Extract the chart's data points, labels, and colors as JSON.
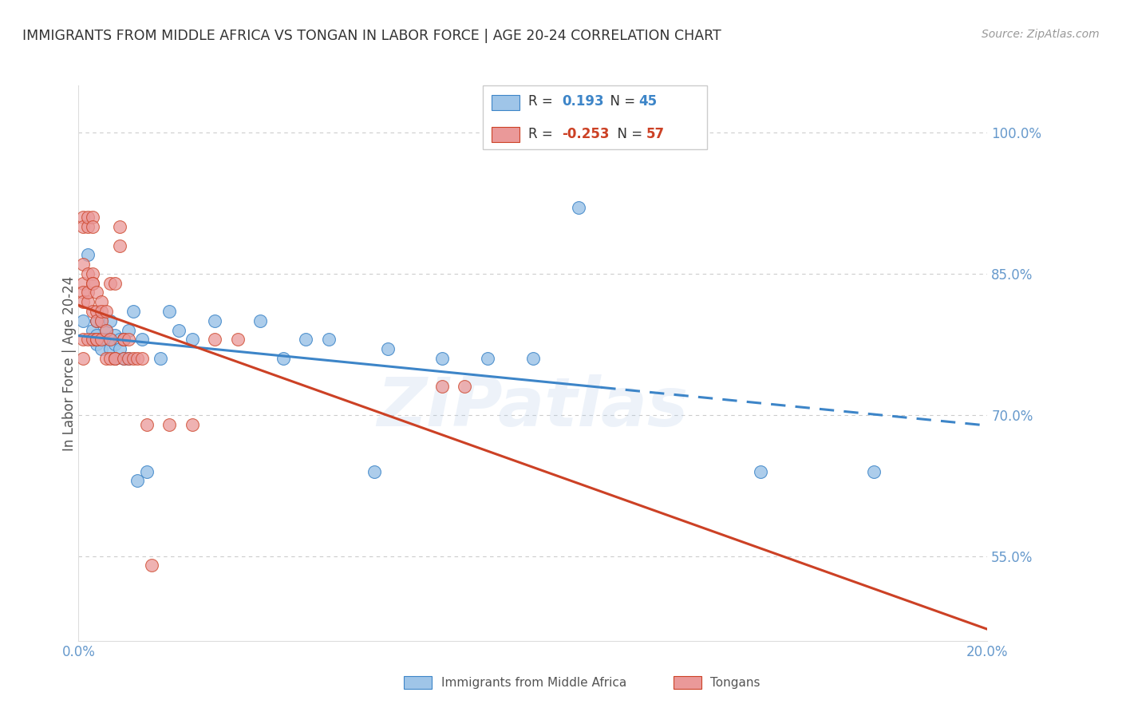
{
  "title": "IMMIGRANTS FROM MIDDLE AFRICA VS TONGAN IN LABOR FORCE | AGE 20-24 CORRELATION CHART",
  "source": "Source: ZipAtlas.com",
  "ylabel": "In Labor Force | Age 20-24",
  "watermark": "ZIPatlas",
  "x_min": 0.0,
  "x_max": 0.2,
  "y_min": 0.46,
  "y_max": 1.05,
  "yticks": [
    0.55,
    0.7,
    0.85,
    1.0
  ],
  "ytick_labels": [
    "55.0%",
    "70.0%",
    "85.0%",
    "100.0%"
  ],
  "xticks": [
    0.0,
    0.05,
    0.1,
    0.15,
    0.2
  ],
  "xtick_labels": [
    "0.0%",
    "",
    "",
    "",
    "20.0%"
  ],
  "legend_R_blue": "0.193",
  "legend_N_blue": "45",
  "legend_R_pink": "-0.253",
  "legend_N_pink": "57",
  "blue_fill": "#9fc5e8",
  "pink_fill": "#ea9999",
  "blue_edge": "#3d85c8",
  "pink_edge": "#cc4125",
  "blue_line": "#3d85c8",
  "pink_line": "#cc4125",
  "background_color": "#ffffff",
  "grid_color": "#cccccc",
  "title_color": "#333333",
  "tick_color": "#6699cc",
  "marker_size": 130,
  "blue_scatter": [
    [
      0.001,
      0.8
    ],
    [
      0.002,
      0.87
    ],
    [
      0.003,
      0.79
    ],
    [
      0.003,
      0.78
    ],
    [
      0.004,
      0.8
    ],
    [
      0.004,
      0.785
    ],
    [
      0.004,
      0.775
    ],
    [
      0.005,
      0.8
    ],
    [
      0.005,
      0.78
    ],
    [
      0.005,
      0.77
    ],
    [
      0.006,
      0.79
    ],
    [
      0.006,
      0.78
    ],
    [
      0.007,
      0.8
    ],
    [
      0.007,
      0.78
    ],
    [
      0.007,
      0.77
    ],
    [
      0.008,
      0.785
    ],
    [
      0.008,
      0.775
    ],
    [
      0.008,
      0.76
    ],
    [
      0.009,
      0.78
    ],
    [
      0.009,
      0.77
    ],
    [
      0.01,
      0.78
    ],
    [
      0.01,
      0.76
    ],
    [
      0.011,
      0.79
    ],
    [
      0.011,
      0.76
    ],
    [
      0.012,
      0.81
    ],
    [
      0.013,
      0.63
    ],
    [
      0.014,
      0.78
    ],
    [
      0.015,
      0.64
    ],
    [
      0.018,
      0.76
    ],
    [
      0.02,
      0.81
    ],
    [
      0.022,
      0.79
    ],
    [
      0.025,
      0.78
    ],
    [
      0.03,
      0.8
    ],
    [
      0.04,
      0.8
    ],
    [
      0.045,
      0.76
    ],
    [
      0.05,
      0.78
    ],
    [
      0.055,
      0.78
    ],
    [
      0.065,
      0.64
    ],
    [
      0.068,
      0.77
    ],
    [
      0.08,
      0.76
    ],
    [
      0.09,
      0.76
    ],
    [
      0.1,
      0.76
    ],
    [
      0.11,
      0.92
    ],
    [
      0.15,
      0.64
    ],
    [
      0.175,
      0.64
    ]
  ],
  "pink_scatter": [
    [
      0.001,
      0.86
    ],
    [
      0.001,
      0.84
    ],
    [
      0.001,
      0.83
    ],
    [
      0.001,
      0.82
    ],
    [
      0.001,
      0.91
    ],
    [
      0.001,
      0.9
    ],
    [
      0.001,
      0.78
    ],
    [
      0.001,
      0.76
    ],
    [
      0.002,
      0.78
    ],
    [
      0.002,
      0.82
    ],
    [
      0.002,
      0.83
    ],
    [
      0.002,
      0.85
    ],
    [
      0.002,
      0.9
    ],
    [
      0.002,
      0.91
    ],
    [
      0.003,
      0.91
    ],
    [
      0.003,
      0.9
    ],
    [
      0.003,
      0.85
    ],
    [
      0.003,
      0.84
    ],
    [
      0.003,
      0.84
    ],
    [
      0.003,
      0.81
    ],
    [
      0.003,
      0.78
    ],
    [
      0.004,
      0.83
    ],
    [
      0.004,
      0.81
    ],
    [
      0.004,
      0.8
    ],
    [
      0.004,
      0.78
    ],
    [
      0.004,
      0.78
    ],
    [
      0.005,
      0.82
    ],
    [
      0.005,
      0.8
    ],
    [
      0.005,
      0.78
    ],
    [
      0.005,
      0.81
    ],
    [
      0.006,
      0.81
    ],
    [
      0.006,
      0.79
    ],
    [
      0.006,
      0.76
    ],
    [
      0.007,
      0.84
    ],
    [
      0.007,
      0.78
    ],
    [
      0.007,
      0.76
    ],
    [
      0.008,
      0.84
    ],
    [
      0.008,
      0.76
    ],
    [
      0.008,
      0.76
    ],
    [
      0.009,
      0.9
    ],
    [
      0.009,
      0.88
    ],
    [
      0.01,
      0.78
    ],
    [
      0.01,
      0.76
    ],
    [
      0.01,
      0.78
    ],
    [
      0.011,
      0.78
    ],
    [
      0.011,
      0.76
    ],
    [
      0.012,
      0.76
    ],
    [
      0.013,
      0.76
    ],
    [
      0.014,
      0.76
    ],
    [
      0.015,
      0.69
    ],
    [
      0.016,
      0.54
    ],
    [
      0.02,
      0.69
    ],
    [
      0.025,
      0.69
    ],
    [
      0.03,
      0.78
    ],
    [
      0.035,
      0.78
    ],
    [
      0.08,
      0.73
    ],
    [
      0.085,
      0.73
    ]
  ]
}
